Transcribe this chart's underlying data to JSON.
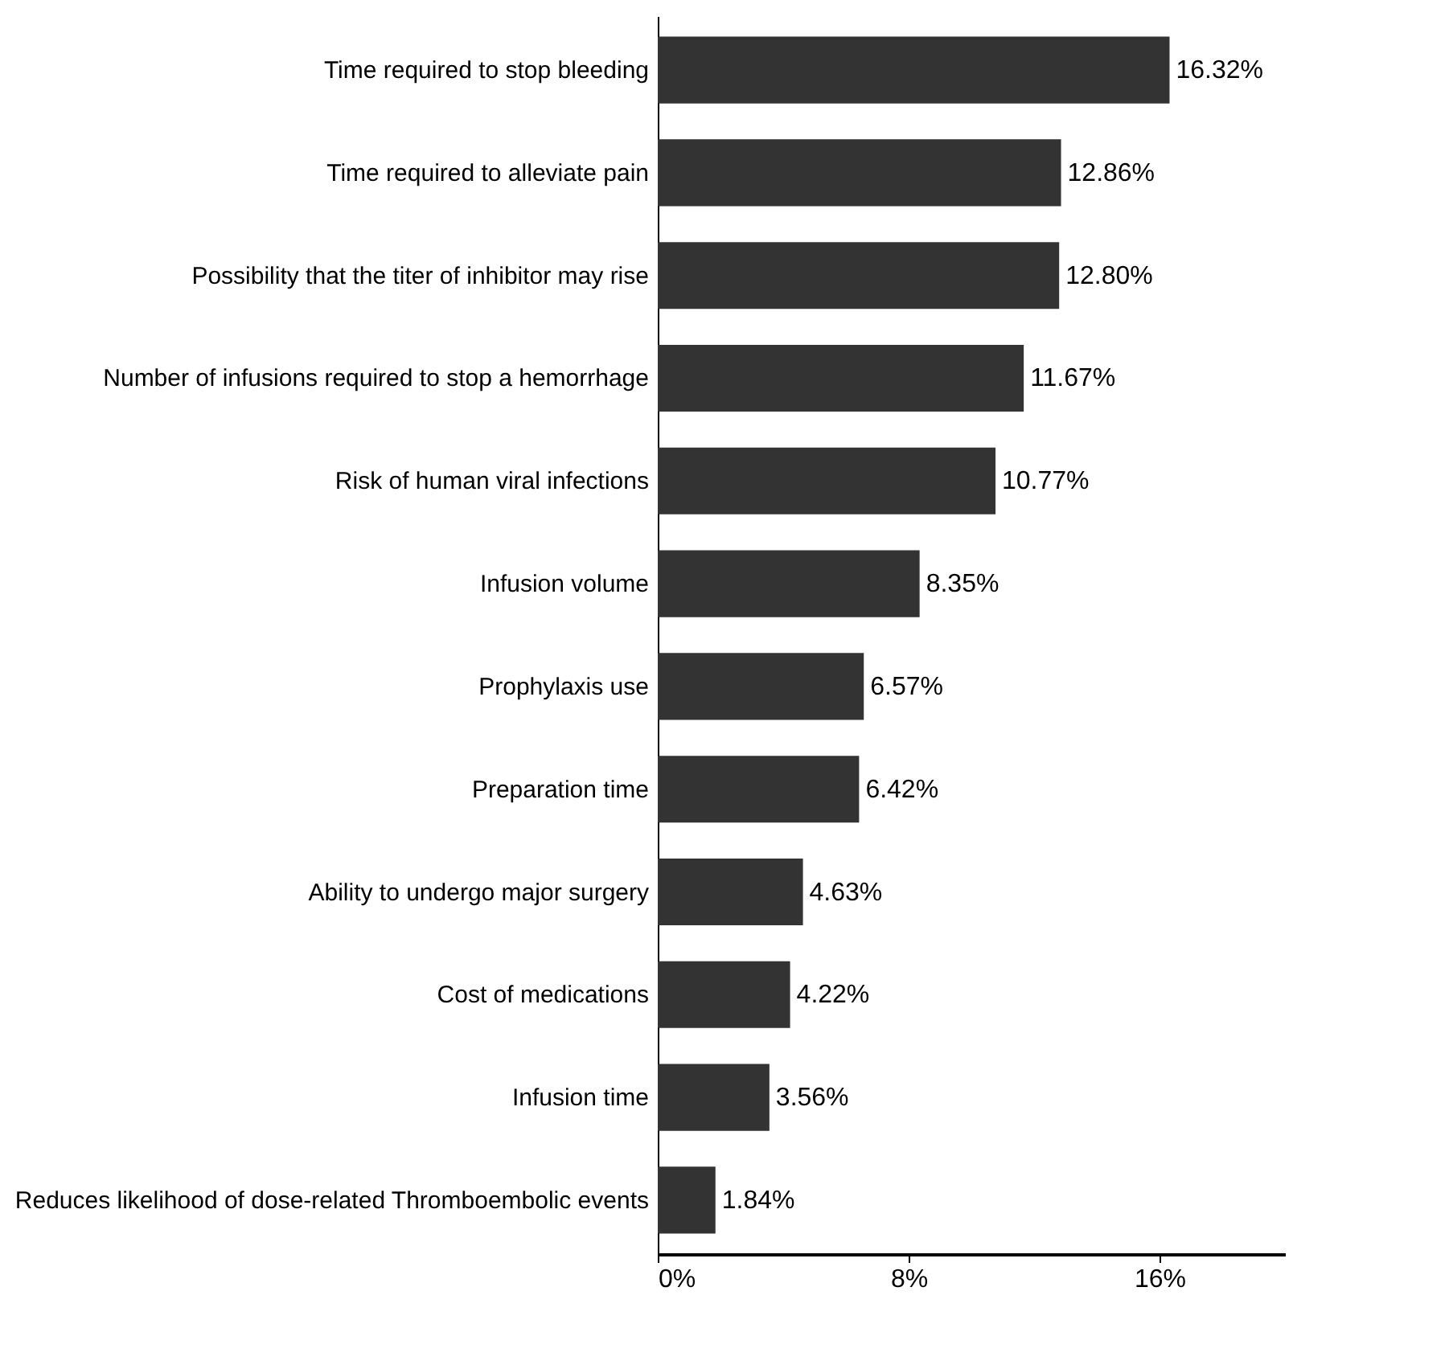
{
  "chart_data": {
    "type": "bar",
    "orientation": "horizontal",
    "categories": [
      "Time required to stop bleeding",
      "Time required to alleviate pain",
      "Possibility that the titer of inhibitor may rise",
      "Number of infusions required to stop a hemorrhage",
      "Risk of human viral infections",
      "Infusion volume",
      "Prophylaxis use",
      "Preparation time",
      "Ability to undergo major surgery",
      "Cost of medications",
      "Infusion time",
      "Reduces likelihood of dose-related Thromboembolic events"
    ],
    "values": [
      16.32,
      12.86,
      12.8,
      11.67,
      10.77,
      8.35,
      6.57,
      6.42,
      4.63,
      4.22,
      3.56,
      1.84
    ],
    "value_labels": [
      "16.32%",
      "12.86%",
      "12.80%",
      "11.67%",
      "10.77%",
      "8.35%",
      "6.57%",
      "6.42%",
      "4.63%",
      "4.22%",
      "3.56%",
      "1.84%"
    ],
    "color": "#333333",
    "xlim": [
      0,
      20
    ],
    "xticks": [
      {
        "value": 0,
        "label": "0%"
      },
      {
        "value": 8,
        "label": "8%"
      },
      {
        "value": 16,
        "label": "16%"
      }
    ],
    "grid": false
  }
}
